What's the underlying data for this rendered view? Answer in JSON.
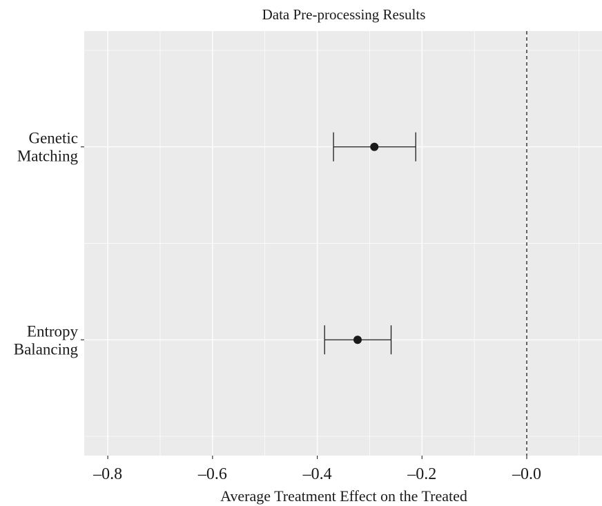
{
  "chart_data": {
    "type": "scatter",
    "title": "Data Pre-processing Results",
    "xlabel": "Average Treatment Effect on the Treated",
    "ylabel": "",
    "xlim": [
      -0.845,
      0.145
    ],
    "x_ticks": [
      -0.8,
      -0.6,
      -0.4,
      -0.2,
      0.0
    ],
    "x_tick_labels": [
      "–0.8",
      "–0.6",
      "–0.4",
      "–0.2",
      "–0.0"
    ],
    "reference_line": {
      "x": 0.0,
      "style": "dashed"
    },
    "grid": true,
    "categories": [
      "Genetic Matching",
      "Entropy Balancing"
    ],
    "category_label_lines": [
      [
        "Genetic",
        "Matching"
      ],
      [
        "Entropy",
        "Balancing"
      ]
    ],
    "points": [
      {
        "category": "Genetic Matching",
        "estimate": -0.291,
        "ci_low": -0.369,
        "ci_high": -0.212
      },
      {
        "category": "Entropy Balancing",
        "estimate": -0.323,
        "ci_low": -0.386,
        "ci_high": -0.259
      }
    ],
    "colors": {
      "panel": "#ebebeb",
      "grid": "#ffffff",
      "mark": "#1a1a1a"
    }
  }
}
